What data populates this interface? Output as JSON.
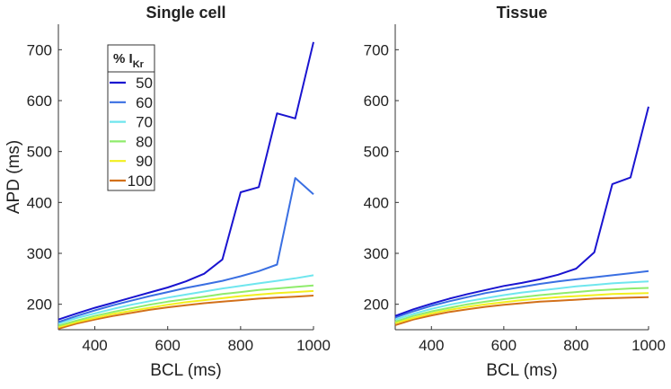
{
  "chart_data": [
    {
      "type": "line",
      "title": "Single cell",
      "xlabel": "BCL (ms)",
      "ylabel": "APD (ms)",
      "xlim": [
        300,
        1000
      ],
      "ylim": [
        150,
        750
      ],
      "xticks": [
        "400",
        "600",
        "800",
        "1000"
      ],
      "yticks": [
        "200",
        "300",
        "400",
        "500",
        "600",
        "700"
      ],
      "x": [
        300,
        350,
        400,
        450,
        500,
        550,
        600,
        650,
        700,
        750,
        800,
        850,
        900,
        950,
        1000
      ],
      "legend": {
        "title": "% I",
        "title_sub": "Kr",
        "placement": "top-left"
      },
      "series": [
        {
          "name": "50",
          "color": "#1a14d0",
          "values": [
            170,
            182,
            193,
            203,
            213,
            223,
            233,
            245,
            260,
            288,
            420,
            430,
            575,
            565,
            715
          ]
        },
        {
          "name": "60",
          "color": "#3a6fe2",
          "values": [
            165,
            177,
            188,
            198,
            207,
            216,
            224,
            232,
            239,
            246,
            255,
            265,
            278,
            448,
            416
          ]
        },
        {
          "name": "70",
          "color": "#6fe6ee",
          "values": [
            162,
            173,
            182,
            191,
            199,
            206,
            213,
            219,
            225,
            231,
            236,
            241,
            246,
            251,
            257
          ]
        },
        {
          "name": "80",
          "color": "#8fec6c",
          "values": [
            158,
            168,
            177,
            185,
            192,
            199,
            205,
            210,
            215,
            220,
            224,
            228,
            231,
            234,
            237
          ]
        },
        {
          "name": "90",
          "color": "#f2ef1e",
          "values": [
            155,
            165,
            173,
            181,
            187,
            193,
            199,
            204,
            208,
            212,
            216,
            219,
            222,
            224,
            226
          ]
        },
        {
          "name": "100",
          "color": "#d2701a",
          "values": [
            152,
            162,
            170,
            177,
            183,
            189,
            194,
            198,
            202,
            205,
            208,
            211,
            213,
            215,
            217
          ]
        }
      ]
    },
    {
      "type": "line",
      "title": "Tissue",
      "xlabel": "BCL (ms)",
      "ylabel": "",
      "xlim": [
        300,
        1000
      ],
      "ylim": [
        150,
        750
      ],
      "xticks": [
        "400",
        "600",
        "800",
        "1000"
      ],
      "yticks": [
        "200",
        "300",
        "400",
        "500",
        "600",
        "700"
      ],
      "x": [
        300,
        350,
        400,
        450,
        500,
        550,
        600,
        650,
        700,
        750,
        800,
        850,
        900,
        950,
        1000
      ],
      "series": [
        {
          "name": "50",
          "color": "#1a14d0",
          "values": [
            177,
            190,
            201,
            211,
            220,
            228,
            236,
            242,
            249,
            258,
            270,
            302,
            436,
            449,
            588
          ]
        },
        {
          "name": "60",
          "color": "#3a6fe2",
          "values": [
            174,
            186,
            197,
            206,
            214,
            222,
            228,
            234,
            240,
            245,
            249,
            253,
            257,
            261,
            265
          ]
        },
        {
          "name": "70",
          "color": "#6fe6ee",
          "values": [
            170,
            181,
            191,
            199,
            206,
            212,
            218,
            223,
            227,
            231,
            235,
            238,
            241,
            243,
            245
          ]
        },
        {
          "name": "80",
          "color": "#8fec6c",
          "values": [
            166,
            177,
            186,
            193,
            200,
            205,
            210,
            214,
            218,
            221,
            224,
            227,
            229,
            231,
            232
          ]
        },
        {
          "name": "90",
          "color": "#f2ef1e",
          "values": [
            163,
            173,
            182,
            189,
            195,
            200,
            204,
            208,
            211,
            214,
            216,
            218,
            220,
            221,
            222
          ]
        },
        {
          "name": "100",
          "color": "#d2701a",
          "values": [
            159,
            170,
            178,
            185,
            190,
            195,
            199,
            202,
            205,
            207,
            209,
            211,
            212,
            213,
            214
          ]
        }
      ]
    }
  ]
}
